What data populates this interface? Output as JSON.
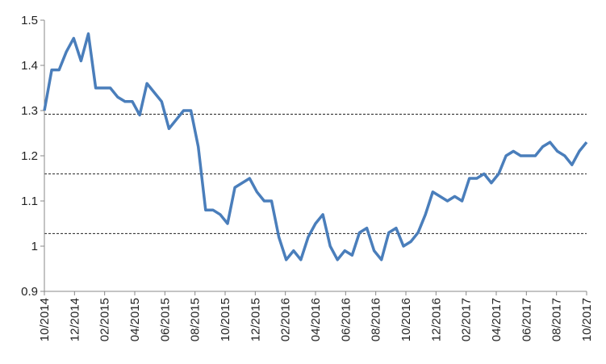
{
  "chart_data": {
    "type": "line",
    "x_tick_labels": [
      "10/2014",
      "12/2014",
      "02/2015",
      "04/2015",
      "06/2015",
      "08/2015",
      "10/2015",
      "12/2015",
      "02/2016",
      "04/2016",
      "06/2016",
      "08/2016",
      "10/2016",
      "12/2016",
      "02/2017",
      "04/2017",
      "06/2017",
      "08/2017",
      "10/2017"
    ],
    "ylim": [
      0.9,
      1.5
    ],
    "yticks": [
      0.9,
      1,
      1.1,
      1.2,
      1.3,
      1.4,
      1.5
    ],
    "reference_lines": [
      1.292,
      1.16,
      1.028
    ],
    "series": [
      {
        "color": "#4a7ebb",
        "values": [
          1.3,
          1.39,
          1.39,
          1.43,
          1.46,
          1.41,
          1.47,
          1.35,
          1.35,
          1.35,
          1.33,
          1.32,
          1.32,
          1.29,
          1.36,
          1.34,
          1.32,
          1.26,
          1.28,
          1.3,
          1.3,
          1.22,
          1.08,
          1.08,
          1.07,
          1.05,
          1.13,
          1.14,
          1.15,
          1.12,
          1.1,
          1.1,
          1.02,
          0.97,
          0.99,
          0.97,
          1.02,
          1.05,
          1.07,
          1.0,
          0.97,
          0.99,
          0.98,
          1.03,
          1.04,
          0.99,
          0.97,
          1.03,
          1.04,
          1.0,
          1.01,
          1.03,
          1.07,
          1.12,
          1.11,
          1.1,
          1.11,
          1.1,
          1.15,
          1.15,
          1.16,
          1.14,
          1.16,
          1.2,
          1.21,
          1.2,
          1.2,
          1.2,
          1.22,
          1.23,
          1.21,
          1.2,
          1.18,
          1.21,
          1.23
        ]
      }
    ]
  }
}
